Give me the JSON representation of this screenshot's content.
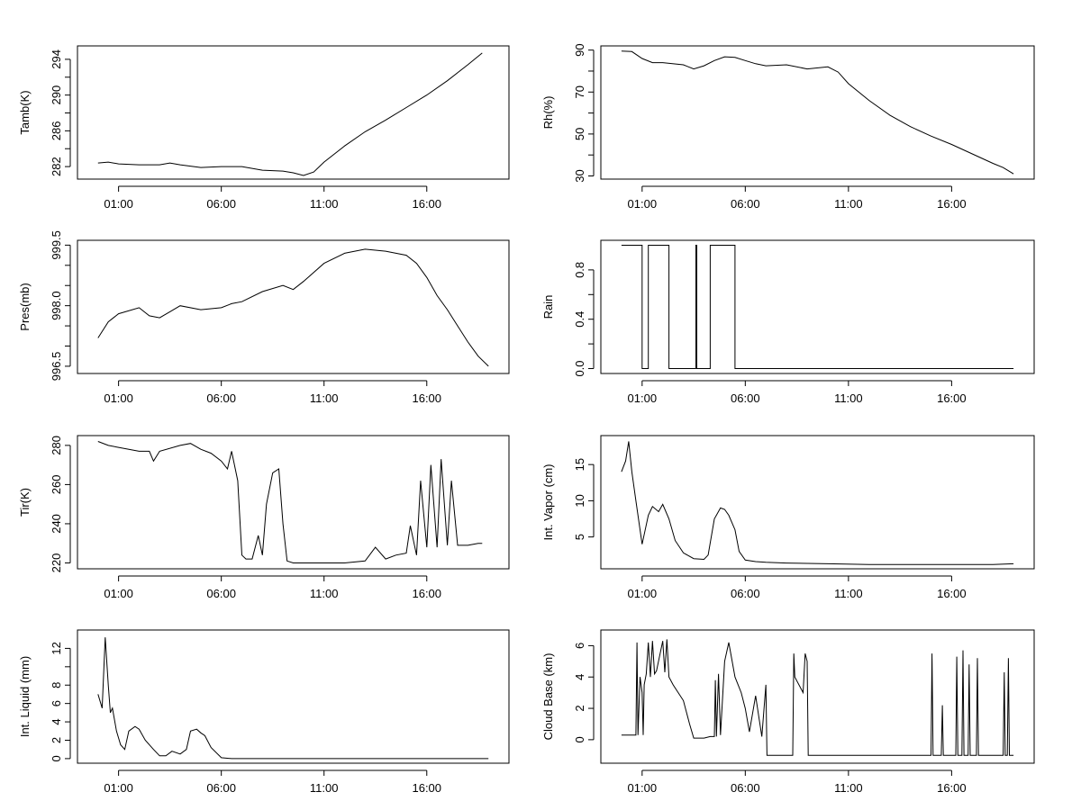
{
  "chart_data": [
    {
      "type": "line",
      "ylabel": "Tamb(K)",
      "xlim": [
        -1.0,
        20.0
      ],
      "ylim": [
        280.6,
        295.5
      ],
      "xticks": [
        1,
        6,
        11,
        16
      ],
      "xtick_labels": [
        "01:00",
        "06:00",
        "11:00",
        "16:00"
      ],
      "yticks": [
        282,
        284,
        286,
        288,
        290,
        292,
        294
      ],
      "ytick_labels": [
        "282",
        "",
        "286",
        "",
        "290",
        "",
        "294"
      ],
      "x": [
        0.0,
        0.5,
        1.0,
        2.0,
        3.0,
        3.5,
        4.0,
        5.0,
        6.0,
        7.0,
        8.0,
        9.0,
        9.5,
        10.0,
        10.5,
        11.0,
        12.0,
        13.0,
        14.0,
        15.0,
        16.0,
        17.0,
        18.0,
        18.7
      ],
      "y": [
        282.4,
        282.5,
        282.3,
        282.2,
        282.2,
        282.4,
        282.2,
        281.9,
        282.0,
        282.0,
        281.6,
        281.5,
        281.3,
        281.0,
        281.4,
        282.5,
        284.3,
        285.9,
        287.2,
        288.6,
        290.0,
        291.6,
        293.4,
        294.7
      ]
    },
    {
      "type": "line",
      "ylabel": "Rh(%)",
      "xlim": [
        -1.0,
        20.0
      ],
      "ylim": [
        28.5,
        92.0
      ],
      "xticks": [
        1,
        6,
        11,
        16
      ],
      "xtick_labels": [
        "01:00",
        "06:00",
        "11:00",
        "16:00"
      ],
      "yticks": [
        30,
        40,
        50,
        60,
        70,
        80,
        90
      ],
      "ytick_labels": [
        "30",
        "",
        "50",
        "",
        "70",
        "",
        "90"
      ],
      "x": [
        0.0,
        0.5,
        1.0,
        1.5,
        2.0,
        3.0,
        3.5,
        4.0,
        4.5,
        5.0,
        5.5,
        6.0,
        6.5,
        7.0,
        8.0,
        9.0,
        10.0,
        10.5,
        11.0,
        12.0,
        13.0,
        14.0,
        15.0,
        16.0,
        17.0,
        18.0,
        18.5,
        19.0
      ],
      "y": [
        89.5,
        89.3,
        86.0,
        84.0,
        84.0,
        83.0,
        81.0,
        82.5,
        85.0,
        86.8,
        86.5,
        85.0,
        83.5,
        82.5,
        83.0,
        81.0,
        82.0,
        79.5,
        74.0,
        66.0,
        59.0,
        53.5,
        49.0,
        45.0,
        40.5,
        36.0,
        34.0,
        31.0
      ]
    },
    {
      "type": "line",
      "ylabel": "Pres(mb)",
      "xlim": [
        -1.0,
        20.0
      ],
      "ylim": [
        996.32,
        999.62
      ],
      "xticks": [
        1,
        6,
        11,
        16
      ],
      "xtick_labels": [
        "01:00",
        "06:00",
        "11:00",
        "16:00"
      ],
      "yticks": [
        996.5,
        997.0,
        997.5,
        998.0,
        998.5,
        999.0,
        999.5
      ],
      "ytick_labels": [
        "996.5",
        "",
        "",
        "998.0",
        "",
        "",
        "999.5"
      ],
      "x": [
        0.0,
        0.5,
        1.0,
        2.0,
        2.5,
        3.0,
        3.5,
        4.0,
        5.0,
        6.0,
        6.5,
        7.0,
        8.0,
        9.0,
        9.5,
        10.0,
        11.0,
        12.0,
        13.0,
        14.0,
        15.0,
        15.5,
        16.0,
        16.5,
        17.0,
        17.5,
        18.0,
        18.5,
        19.0
      ],
      "y": [
        997.2,
        997.6,
        997.8,
        997.95,
        997.75,
        997.7,
        997.85,
        998.0,
        997.9,
        997.95,
        998.05,
        998.1,
        998.35,
        998.5,
        998.4,
        998.6,
        999.05,
        999.3,
        999.4,
        999.35,
        999.25,
        999.05,
        998.7,
        998.25,
        997.9,
        997.5,
        997.1,
        996.75,
        996.5
      ]
    },
    {
      "type": "line",
      "ylabel": "Rain",
      "xlim": [
        -1.0,
        20.0
      ],
      "ylim": [
        -0.04,
        1.04
      ],
      "xticks": [
        1,
        6,
        11,
        16
      ],
      "xtick_labels": [
        "01:00",
        "06:00",
        "11:00",
        "16:00"
      ],
      "yticks": [
        0.0,
        0.2,
        0.4,
        0.6,
        0.8
      ],
      "ytick_labels": [
        "0.0",
        "",
        "0.4",
        "",
        "0.8"
      ],
      "x": [
        0.0,
        1.0,
        1.0,
        1.3,
        1.3,
        2.3,
        2.3,
        3.6,
        3.6,
        3.65,
        3.65,
        4.3,
        4.3,
        5.5,
        5.5,
        19.0
      ],
      "y": [
        1,
        1,
        0,
        0,
        1,
        1,
        0,
        0,
        1,
        1,
        0,
        0,
        1,
        1,
        0,
        0
      ]
    },
    {
      "type": "line",
      "ylabel": "Tir(K)",
      "xlim": [
        -1.0,
        20.0
      ],
      "ylim": [
        217.0,
        285.0
      ],
      "xticks": [
        1,
        6,
        11,
        16
      ],
      "xtick_labels": [
        "01:00",
        "06:00",
        "11:00",
        "16:00"
      ],
      "yticks": [
        220,
        240,
        260,
        280
      ],
      "ytick_labels": [
        "220",
        "240",
        "260",
        "280"
      ],
      "x": [
        0.0,
        0.5,
        1.0,
        2.0,
        2.5,
        2.7,
        3.0,
        4.0,
        4.5,
        5.0,
        5.5,
        6.0,
        6.3,
        6.5,
        6.8,
        7.0,
        7.2,
        7.5,
        7.8,
        8.0,
        8.2,
        8.5,
        8.8,
        9.0,
        9.2,
        9.5,
        10.0,
        11.0,
        12.0,
        13.0,
        13.5,
        14.0,
        14.5,
        15.0,
        15.2,
        15.5,
        15.7,
        16.0,
        16.2,
        16.5,
        16.7,
        17.0,
        17.2,
        17.5,
        18.0,
        18.5,
        18.7
      ],
      "y": [
        282.0,
        280.0,
        279.0,
        277.0,
        277.0,
        272.0,
        277.0,
        280.0,
        281.0,
        278.0,
        276.0,
        272.0,
        268.0,
        277.0,
        262.0,
        224.0,
        222.0,
        222.0,
        234.0,
        224.0,
        250.0,
        266.0,
        268.0,
        240.0,
        221.0,
        220.0,
        220.0,
        220.0,
        220.0,
        221.0,
        228.0,
        222.0,
        224.0,
        225.0,
        239.0,
        224.0,
        262.0,
        228.0,
        270.0,
        228.0,
        273.0,
        229.0,
        262.0,
        229.0,
        229.0,
        230.0,
        230.0
      ]
    },
    {
      "type": "line",
      "ylabel": "Int. Vapor (cm)",
      "xlim": [
        -1.0,
        20.0
      ],
      "ylim": [
        0.6,
        19.0
      ],
      "xticks": [
        1,
        6,
        11,
        16
      ],
      "xtick_labels": [
        "01:00",
        "06:00",
        "11:00",
        "16:00"
      ],
      "yticks": [
        5,
        10,
        15
      ],
      "ytick_labels": [
        "5",
        "10",
        "15"
      ],
      "x": [
        0.0,
        0.2,
        0.35,
        0.5,
        0.7,
        0.9,
        1.0,
        1.3,
        1.5,
        1.8,
        2.0,
        2.3,
        2.6,
        3.0,
        3.5,
        4.0,
        4.2,
        4.5,
        4.8,
        5.0,
        5.2,
        5.5,
        5.7,
        6.0,
        6.5,
        7.0,
        8.0,
        10.0,
        12.0,
        14.0,
        16.0,
        18.0,
        19.0
      ],
      "y": [
        14.0,
        15.5,
        18.2,
        14.0,
        10.0,
        6.0,
        4.0,
        8.0,
        9.2,
        8.5,
        9.5,
        7.5,
        4.5,
        2.8,
        2.0,
        1.9,
        2.5,
        7.5,
        9.0,
        8.8,
        8.0,
        6.0,
        3.0,
        1.8,
        1.6,
        1.5,
        1.4,
        1.3,
        1.2,
        1.2,
        1.2,
        1.2,
        1.3
      ]
    },
    {
      "type": "line",
      "ylabel": "Int. Liquid (mm)",
      "xlim": [
        -1.0,
        20.0
      ],
      "ylim": [
        -0.5,
        14.0
      ],
      "xticks": [
        1,
        6,
        11,
        16
      ],
      "xtick_labels": [
        "01:00",
        "06:00",
        "11:00",
        "16:00"
      ],
      "yticks": [
        0,
        2,
        4,
        6,
        8,
        10,
        12
      ],
      "ytick_labels": [
        "0",
        "2",
        "4",
        "6",
        "8",
        "",
        "12"
      ],
      "x": [
        0.0,
        0.2,
        0.35,
        0.5,
        0.6,
        0.7,
        0.9,
        1.1,
        1.3,
        1.5,
        1.8,
        2.0,
        2.3,
        2.7,
        3.0,
        3.3,
        3.6,
        4.0,
        4.3,
        4.5,
        4.8,
        5.0,
        5.2,
        5.5,
        6.0,
        6.5,
        8.0,
        12.0,
        19.0
      ],
      "y": [
        7.0,
        5.5,
        13.2,
        8.0,
        5.0,
        5.5,
        3.0,
        1.5,
        1.0,
        3.0,
        3.5,
        3.2,
        2.0,
        1.0,
        0.3,
        0.3,
        0.8,
        0.5,
        1.0,
        3.0,
        3.2,
        2.8,
        2.5,
        1.2,
        0.1,
        0.0,
        0.0,
        0.0,
        0.0
      ]
    },
    {
      "type": "line",
      "ylabel": "Cloud Base (km)",
      "xlim": [
        -1.0,
        20.0
      ],
      "ylim": [
        -1.5,
        7.0
      ],
      "xticks": [
        1,
        6,
        11,
        16
      ],
      "xtick_labels": [
        "01:00",
        "06:00",
        "11:00",
        "16:00"
      ],
      "yticks": [
        0,
        2,
        4,
        6
      ],
      "ytick_labels": [
        "0",
        "2",
        "4",
        "6"
      ],
      "x": [
        0.0,
        0.5,
        0.7,
        0.75,
        0.8,
        0.9,
        1.0,
        1.05,
        1.1,
        1.2,
        1.3,
        1.4,
        1.5,
        1.6,
        1.7,
        2.0,
        2.1,
        2.2,
        2.3,
        2.5,
        3.0,
        3.3,
        3.5,
        4.0,
        4.3,
        4.5,
        4.55,
        4.6,
        4.7,
        4.8,
        5.0,
        5.2,
        5.5,
        5.8,
        6.0,
        6.2,
        6.5,
        6.8,
        7.0,
        7.05,
        7.1,
        8.0,
        8.3,
        8.35,
        8.4,
        8.8,
        8.9,
        9.0,
        9.05,
        9.1,
        15.0,
        15.05,
        15.1,
        15.5,
        15.55,
        15.6,
        16.2,
        16.25,
        16.3,
        16.5,
        16.55,
        16.6,
        16.8,
        16.85,
        16.9,
        17.2,
        17.25,
        17.3,
        18.5,
        18.55,
        18.6,
        18.7,
        18.75,
        18.8,
        19.0
      ],
      "y": [
        0.3,
        0.3,
        0.3,
        6.2,
        0.3,
        4.0,
        3.0,
        0.3,
        3.5,
        4.2,
        6.2,
        4.0,
        6.3,
        4.2,
        4.4,
        6.3,
        4.3,
        6.4,
        4.0,
        3.5,
        2.5,
        1.0,
        0.1,
        0.1,
        0.2,
        0.2,
        3.8,
        0.2,
        4.2,
        0.3,
        5.0,
        6.2,
        4.0,
        3.0,
        2.0,
        0.5,
        2.8,
        0.2,
        3.5,
        -1.0,
        -1.0,
        -1.0,
        -1.0,
        5.5,
        4.0,
        3.0,
        5.5,
        5.0,
        -1.0,
        -1.0,
        -1.0,
        5.5,
        -1.0,
        -1.0,
        2.2,
        -1.0,
        -1.0,
        5.3,
        -1.0,
        -1.0,
        5.7,
        -1.0,
        -1.0,
        4.8,
        -1.0,
        -1.0,
        5.2,
        -1.0,
        -1.0,
        4.3,
        -1.0,
        -1.0,
        5.2,
        -1.0,
        -1.0
      ]
    }
  ]
}
